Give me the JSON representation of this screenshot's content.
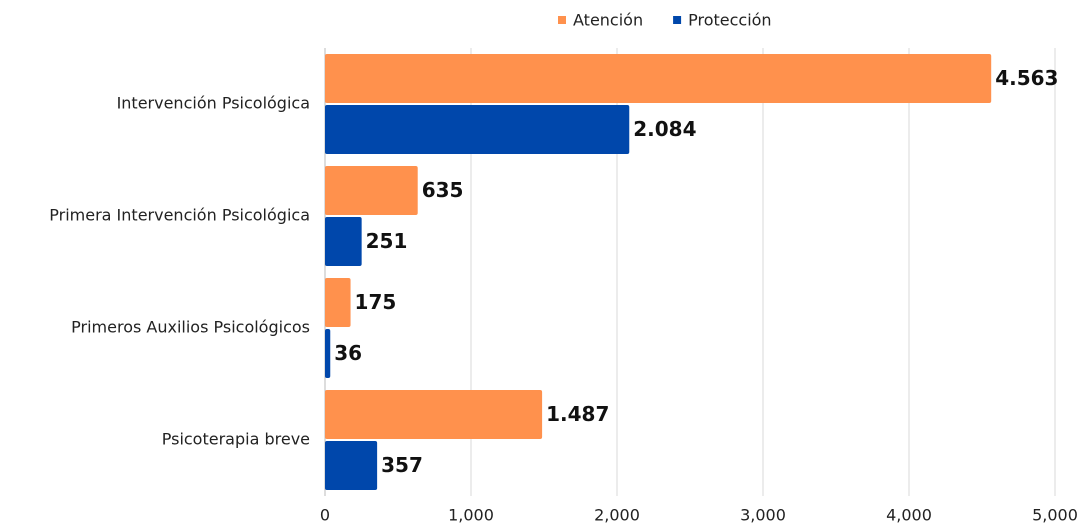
{
  "chart_data": {
    "type": "bar",
    "orientation": "horizontal",
    "categories": [
      "Intervención Psicológica",
      "Primera Intervención Psicológica",
      "Primeros Auxilios Psicológicos",
      "Psicoterapia breve"
    ],
    "series": [
      {
        "name": "Atención",
        "color": "#ff914d",
        "values": [
          4563,
          635,
          175,
          1487
        ],
        "value_labels": [
          "4.563",
          "635",
          "175",
          "1.487"
        ]
      },
      {
        "name": "Protección",
        "color": "#0047ab",
        "values": [
          2084,
          251,
          36,
          357
        ],
        "value_labels": [
          "2.084",
          "251",
          "36",
          "357"
        ]
      }
    ],
    "xlim": [
      0,
      5000
    ],
    "xticks": [
      0,
      {
        "value": 1000,
        "label": "1,000"
      },
      {
        "value": 2000,
        "label": "2,000"
      },
      {
        "value": 3000,
        "label": "3,000"
      },
      {
        "value": 4000,
        "label": "4,000"
      },
      {
        "value": 5000,
        "label": "5,000"
      }
    ],
    "grid": true,
    "legend": "top"
  }
}
